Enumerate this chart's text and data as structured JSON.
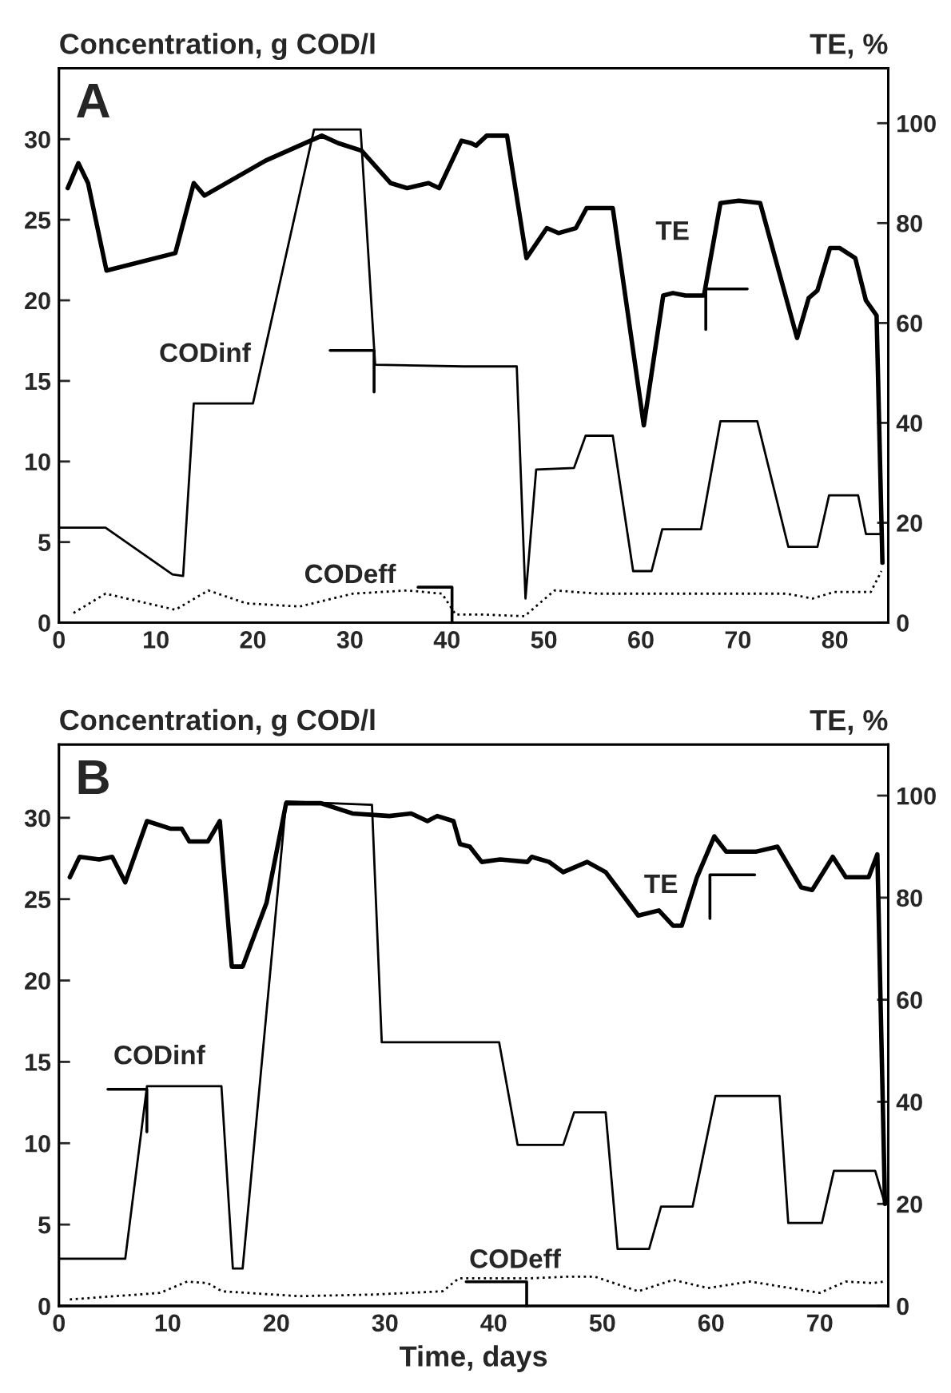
{
  "chart_data": [
    {
      "type": "line",
      "ylabel": "Concentration, g COD/l",
      "y2label": "TE, %",
      "xlim": [
        0,
        85.5
      ],
      "xticks": [
        0,
        10,
        20,
        30,
        40,
        50,
        60,
        70,
        80
      ],
      "ylim": [
        0,
        34.4
      ],
      "yticks": [
        0,
        5,
        10,
        15,
        20,
        25,
        30
      ],
      "y2lim": [
        0,
        111
      ],
      "y2ticks": [
        0,
        20,
        40,
        60,
        80,
        100
      ],
      "grid": false,
      "legend": false,
      "marker": "none",
      "annotations": [
        "A",
        "CODinf",
        "TE",
        "CODeff"
      ],
      "series": [
        {
          "color": "#000000",
          "axis": "y2",
          "line_style": "solid",
          "x": [
            0.9,
            2.0,
            3.0,
            4.9,
            12.0,
            13.9,
            15.0,
            21.3,
            27.1,
            28.8,
            31.2,
            34.2,
            35.9,
            38.1,
            39.2,
            41.5,
            42.5,
            43.0,
            44.1,
            46.2,
            48.2,
            50.3,
            51.5,
            53.3,
            54.4,
            57.1,
            60.3,
            62.3,
            63.3,
            64.6,
            66.5,
            68.2,
            70.1,
            72.3,
            76.1,
            77.3,
            78.2,
            79.5,
            80.5,
            82.1,
            83.2,
            84.3,
            84.9
          ],
          "values": [
            87,
            92,
            88,
            70.5,
            74,
            88,
            85.5,
            92.5,
            97.5,
            96,
            94.5,
            88,
            87,
            88,
            87,
            96.5,
            96,
            95.5,
            97.5,
            97.5,
            73,
            79,
            78,
            79,
            83,
            83,
            39.5,
            65.5,
            66,
            65.5,
            65.5,
            84,
            84.5,
            84,
            57,
            65,
            66.5,
            75,
            75,
            73,
            64.5,
            61.5,
            12
          ]
        },
        {
          "color": "#000000",
          "axis": "y",
          "line_style": "solid",
          "x": [
            0,
            4.8,
            11.7,
            12.8,
            13.9,
            20.0,
            26.3,
            31.1,
            32.6,
            41.7,
            47.2,
            48.1,
            49.2,
            53.1,
            54.3,
            57.1,
            59.2,
            61.1,
            62.2,
            66.2,
            68.2,
            72.0,
            75.2,
            78.2,
            79.4,
            82.4,
            83.2,
            84.8
          ],
          "values": [
            5.9,
            5.9,
            3.0,
            2.9,
            13.6,
            13.6,
            30.6,
            30.6,
            16.0,
            15.9,
            15.9,
            1.5,
            9.5,
            9.6,
            11.6,
            11.6,
            3.2,
            3.2,
            5.8,
            5.8,
            12.5,
            12.5,
            4.7,
            4.7,
            7.9,
            7.9,
            5.5,
            5.5
          ]
        },
        {
          "color": "#000000",
          "axis": "y",
          "line_style": "dotted",
          "x": [
            1.5,
            4.8,
            12.0,
            15.4,
            19.3,
            24.8,
            30.3,
            35.9,
            39.5,
            40.9,
            43.9,
            48.0,
            51.1,
            55.5,
            65.0,
            75.0,
            77.7,
            79.9,
            83.7,
            84.8
          ],
          "values": [
            0.6,
            1.8,
            0.8,
            2.0,
            1.2,
            1.0,
            1.8,
            2.0,
            1.8,
            0.5,
            0.5,
            0.4,
            2.0,
            1.8,
            1.8,
            1.8,
            1.5,
            1.9,
            1.9,
            3.2
          ]
        }
      ]
    },
    {
      "type": "line",
      "ylabel": "Concentration, g COD/l",
      "y2label": "TE, %",
      "xlabel": "Time, days",
      "xlim": [
        0,
        76.3
      ],
      "xticks": [
        0,
        10,
        20,
        30,
        40,
        50,
        60,
        70
      ],
      "ylim": [
        0,
        34.5
      ],
      "yticks": [
        0,
        5,
        10,
        15,
        20,
        25,
        30
      ],
      "y2lim": [
        0,
        110
      ],
      "y2ticks": [
        0,
        20,
        40,
        60,
        80,
        100
      ],
      "grid": false,
      "legend": false,
      "marker": "none",
      "annotations": [
        "B",
        "CODinf",
        "TE",
        "CODeff"
      ],
      "series": [
        {
          "color": "#000000",
          "axis": "y2",
          "line_style": "solid",
          "x": [
            1.0,
            1.9,
            3.7,
            4.9,
            6.1,
            8.1,
            10.3,
            11.3,
            12.0,
            13.7,
            14.8,
            15.9,
            16.9,
            19.1,
            20.9,
            24.1,
            27.0,
            30.4,
            32.4,
            33.9,
            34.8,
            36.3,
            36.9,
            37.8,
            38.9,
            40.6,
            43.1,
            43.5,
            45.1,
            46.4,
            48.6,
            50.3,
            53.3,
            55.2,
            56.5,
            57.3,
            58.7,
            60.3,
            61.4,
            64.1,
            66.1,
            68.3,
            69.3,
            71.2,
            72.4,
            74.5,
            75.3,
            76.0
          ],
          "values": [
            84,
            88,
            87.5,
            88,
            83,
            95,
            93.5,
            93.5,
            91,
            91,
            95,
            66.5,
            66.5,
            79,
            98.5,
            98.5,
            96.5,
            96,
            96.5,
            95,
            96,
            95,
            90.5,
            90,
            87,
            87.5,
            87,
            88,
            87,
            85,
            87,
            85,
            76.5,
            77.5,
            74.5,
            74.5,
            84,
            92,
            89,
            89,
            90,
            82,
            81.5,
            88,
            84,
            84,
            88.5,
            20
          ]
        },
        {
          "color": "#000000",
          "axis": "y",
          "line_style": "solid",
          "x": [
            0,
            6.1,
            8.1,
            14.95,
            16.0,
            16.9,
            20.9,
            28.8,
            29.7,
            40.5,
            42.2,
            46.4,
            47.4,
            50.3,
            51.4,
            54.3,
            55.4,
            58.3,
            60.4,
            66.3,
            67.1,
            70.2,
            71.3,
            75.1,
            75.9
          ],
          "values": [
            2.9,
            2.9,
            13.5,
            13.5,
            2.3,
            2.3,
            31.0,
            30.8,
            16.2,
            16.2,
            9.9,
            9.9,
            11.9,
            11.9,
            3.5,
            3.5,
            6.1,
            6.1,
            12.9,
            12.9,
            5.1,
            5.1,
            8.3,
            8.3,
            6.5
          ]
        },
        {
          "color": "#000000",
          "axis": "y",
          "line_style": "dotted",
          "x": [
            1.0,
            9.3,
            11.8,
            13.7,
            15.0,
            22.1,
            28.9,
            35.3,
            36.8,
            38.9,
            43.4,
            46.9,
            49.3,
            53.3,
            56.5,
            59.7,
            63.6,
            70.0,
            72.4,
            74.9,
            75.9
          ],
          "values": [
            0.4,
            0.8,
            1.5,
            1.4,
            0.9,
            0.6,
            0.7,
            0.9,
            1.7,
            1.7,
            1.7,
            1.8,
            1.8,
            0.9,
            1.6,
            1.1,
            1.5,
            0.8,
            1.5,
            1.4,
            1.5
          ]
        }
      ]
    }
  ]
}
